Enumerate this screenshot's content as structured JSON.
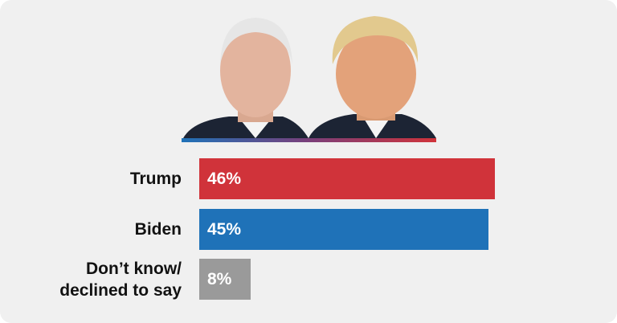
{
  "chart_data": {
    "type": "bar",
    "orientation": "horizontal",
    "categories": [
      "Trump",
      "Biden",
      "Don’t know/ declined to say"
    ],
    "values": [
      46,
      45,
      8
    ],
    "value_labels": [
      "46%",
      "45%",
      "8%"
    ],
    "colors": [
      "#d0333a",
      "#1f72b8",
      "#9a9a9a"
    ]
  }
}
